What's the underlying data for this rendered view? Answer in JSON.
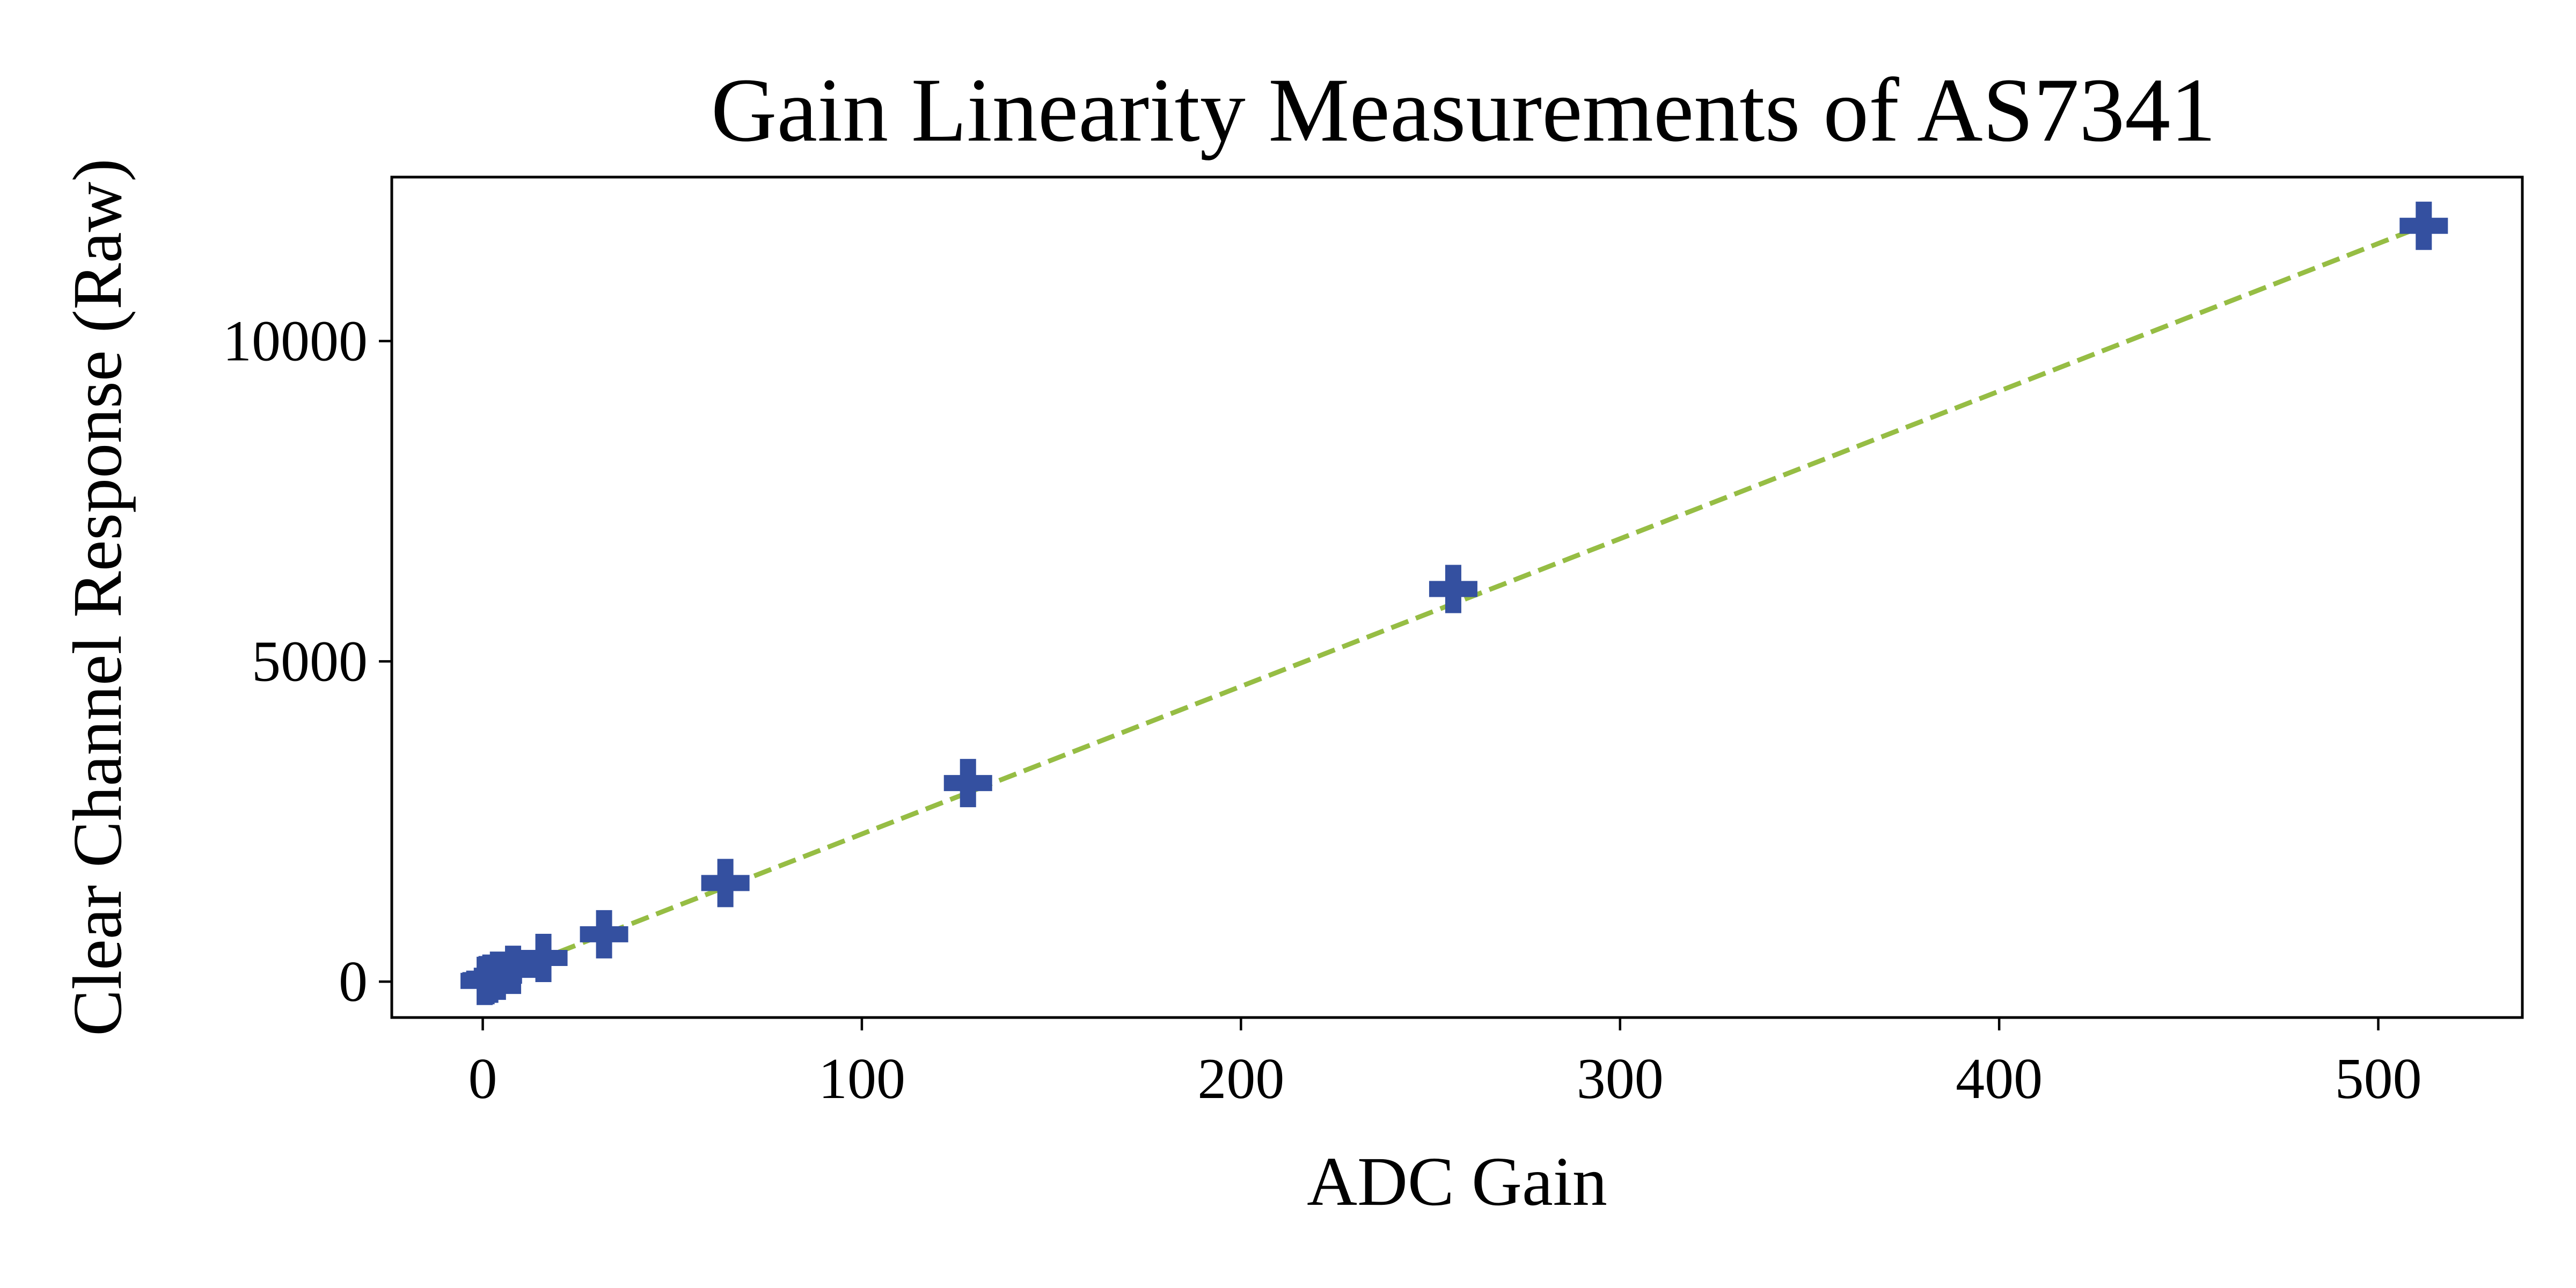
{
  "chart_data": {
    "type": "scatter",
    "title": "Gain Linearity Measurements of AS7341",
    "xlabel": "ADC Gain",
    "ylabel": "Clear Channel Response (Raw)",
    "xlim": [
      -24,
      538
    ],
    "ylim": [
      -560,
      12560
    ],
    "xticks": [
      0,
      100,
      200,
      300,
      400,
      500
    ],
    "xtick_labels": [
      "0",
      "100",
      "200",
      "300",
      "400",
      "500"
    ],
    "yticks": [
      0,
      5000,
      10000
    ],
    "ytick_labels": [
      "0",
      "5000",
      "10000"
    ],
    "grid": false,
    "legend": "none",
    "series": [
      {
        "marker": "plus",
        "color": "#3450a0",
        "x": [
          0.5,
          1,
          2,
          4,
          8,
          16,
          32,
          64,
          128,
          256,
          512
        ],
        "y": [
          12,
          23,
          46,
          92,
          185,
          370,
          740,
          1540,
          3100,
          6130,
          11800
        ]
      }
    ],
    "fit_line": {
      "style": "dashed",
      "color": "#96bd44",
      "x": [
        0.5,
        512
      ],
      "y": [
        12,
        11800
      ]
    }
  }
}
